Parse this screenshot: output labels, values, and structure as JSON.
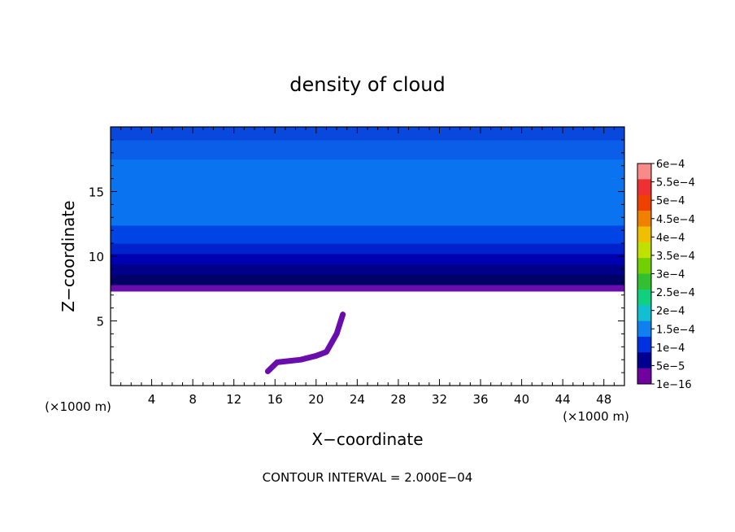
{
  "chart_data": {
    "type": "heatmap",
    "title": "density of cloud",
    "xlabel": "X−coordinate",
    "ylabel": "Z−coordinate",
    "x_unit": "(×1000 m)",
    "x_unit_right": "(×1000 m)",
    "xlim": [
      0,
      50
    ],
    "ylim": [
      0,
      20
    ],
    "x_ticks": [
      4,
      8,
      12,
      16,
      20,
      24,
      28,
      32,
      36,
      40,
      44,
      48
    ],
    "y_ticks": [
      5,
      10,
      15
    ],
    "layers": [
      {
        "z_range": [
          7.3,
          7.8
        ],
        "value": "1e-16",
        "color": "#6a0dad"
      },
      {
        "z_range": [
          7.8,
          8.6
        ],
        "value": "5e-5",
        "color": "#000066"
      },
      {
        "z_range": [
          8.6,
          9.4
        ],
        "value": "5e-5",
        "color": "#00008b"
      },
      {
        "z_range": [
          9.4,
          10.2
        ],
        "value": "5e-5",
        "color": "#0000b3"
      },
      {
        "z_range": [
          10.2,
          11.0
        ],
        "value": "1e-4",
        "color": "#0022cc"
      },
      {
        "z_range": [
          11.0,
          12.4
        ],
        "value": "1e-4",
        "color": "#0044e6"
      },
      {
        "z_range": [
          12.4,
          17.5
        ],
        "value": "1.5e-4",
        "color": "#0a74f0"
      },
      {
        "z_range": [
          17.5,
          19.0
        ],
        "value": "1.5e-4",
        "color": "#0a5ee8"
      },
      {
        "z_range": [
          19.0,
          20.0
        ],
        "value": "1e-4",
        "color": "#0848dc"
      }
    ],
    "streak": [
      [
        15.3,
        1.1
      ],
      [
        16.2,
        1.8
      ],
      [
        18.5,
        2.0
      ],
      [
        20.0,
        2.3
      ],
      [
        21.0,
        2.6
      ],
      [
        22.0,
        4.0
      ],
      [
        22.6,
        5.5
      ]
    ],
    "colorbar": {
      "labels": [
        "6e−4",
        "5.5e−4",
        "5e−4",
        "4.5e−4",
        "4e−4",
        "3.5e−4",
        "3e−4",
        "2.5e−4",
        "2e−4",
        "1.5e−4",
        "1e−4",
        "5e−5",
        "1e−16"
      ],
      "colors": [
        "#f88a8a",
        "#f03030",
        "#f04000",
        "#f08000",
        "#f0c000",
        "#c0e000",
        "#70d000",
        "#30c030",
        "#10d080",
        "#10c0d0",
        "#1080f0",
        "#0030e0",
        "#000090",
        "#7000a0"
      ]
    },
    "annotation": "CONTOUR INTERVAL = 2.000E−04"
  }
}
